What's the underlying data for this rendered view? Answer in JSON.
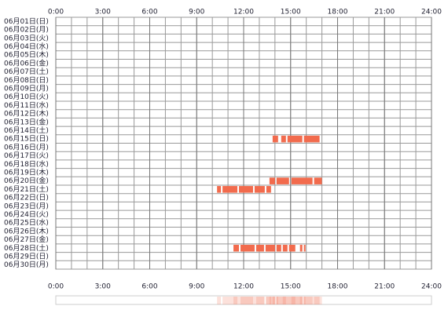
{
  "chart_data": {
    "type": "timeline",
    "categories": [
      "06月01日(日)",
      "06月02日(月)",
      "06月03日(火)",
      "06月04日(水)",
      "06月05日(木)",
      "06月06日(金)",
      "06月07日(土)",
      "06月08日(日)",
      "06月09日(月)",
      "06月10日(火)",
      "06月11日(水)",
      "06月12日(木)",
      "06月13日(金)",
      "06月14日(土)",
      "06月15日(日)",
      "06月16日(月)",
      "06月17日(火)",
      "06月18日(水)",
      "06月19日(木)",
      "06月20日(金)",
      "06月21日(土)",
      "06月22日(日)",
      "06月23日(月)",
      "06月24日(火)",
      "06月25日(水)",
      "06月26日(木)",
      "06月27日(金)",
      "06月28日(土)",
      "06月29日(日)",
      "06月30日(月)"
    ],
    "rows": [
      [],
      [],
      [],
      [],
      [],
      [],
      [],
      [],
      [],
      [],
      [],
      [],
      [],
      [],
      [
        [
          13.85,
          14.2
        ],
        [
          14.4,
          14.7
        ],
        [
          14.8,
          15.75
        ],
        [
          15.85,
          16.85
        ]
      ],
      [],
      [],
      [],
      [],
      [
        [
          13.65,
          14.0
        ],
        [
          14.1,
          14.9
        ],
        [
          15.05,
          16.4
        ],
        [
          16.5,
          17.0
        ]
      ],
      [
        [
          10.3,
          10.55
        ],
        [
          10.65,
          11.6
        ],
        [
          11.7,
          12.6
        ],
        [
          12.7,
          13.35
        ],
        [
          13.45,
          13.75
        ]
      ],
      [],
      [],
      [],
      [],
      [],
      [],
      [
        [
          11.35,
          11.7
        ],
        [
          11.8,
          12.7
        ],
        [
          12.8,
          13.3
        ],
        [
          13.4,
          14.0
        ],
        [
          14.1,
          14.4
        ],
        [
          14.5,
          14.8
        ],
        [
          14.9,
          15.3
        ],
        [
          15.6,
          15.75
        ],
        [
          15.85,
          15.95
        ]
      ],
      [],
      []
    ],
    "color": "#f26b4d",
    "xlim": [
      0,
      24
    ],
    "xticks": [
      {
        "value": 0,
        "label": "0:00"
      },
      {
        "value": 3,
        "label": "3:00"
      },
      {
        "value": 6,
        "label": "6:00"
      },
      {
        "value": 9,
        "label": "9:00"
      },
      {
        "value": 12,
        "label": "12:00"
      },
      {
        "value": 15,
        "label": "15:00"
      },
      {
        "value": 18,
        "label": "18:00"
      },
      {
        "value": 21,
        "label": "21:00"
      },
      {
        "value": 24,
        "label": "24:00"
      }
    ],
    "grid": true
  }
}
